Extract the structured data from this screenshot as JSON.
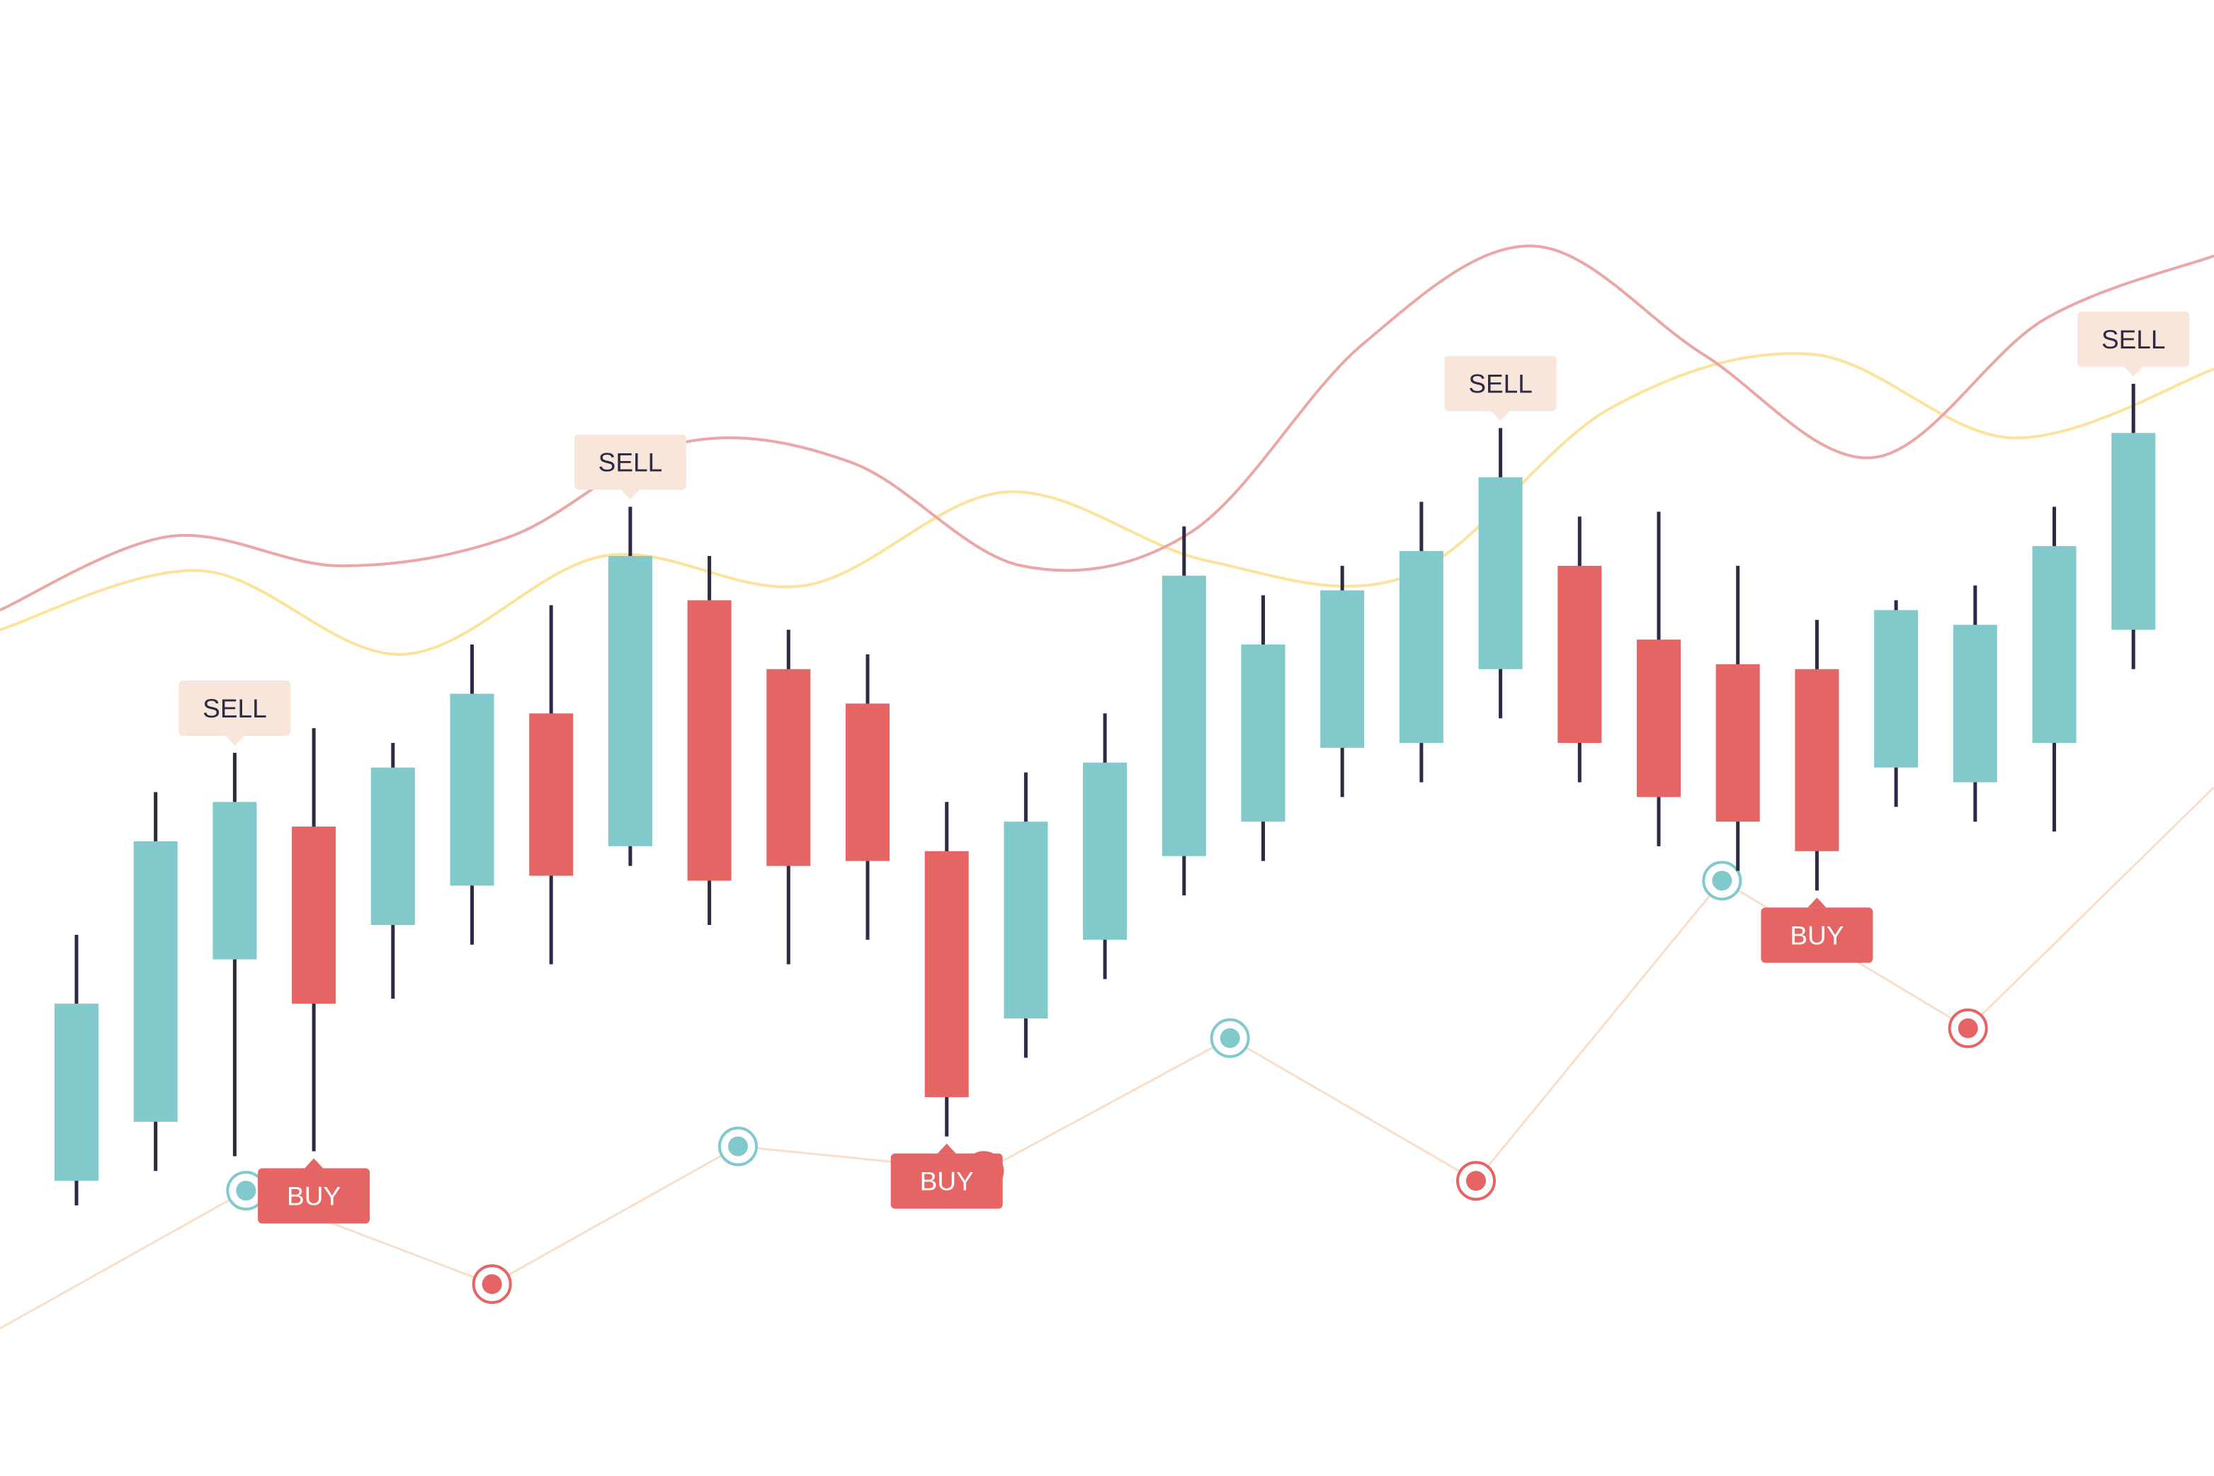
{
  "chart_data": {
    "type": "candlestick",
    "colors": {
      "up": "#82C9CB",
      "down": "#E46564",
      "wick": "#2E2A44",
      "ma_fast": "#EAA7A5",
      "ma_slow": "#FBE39C",
      "oscillator": "#F9DEC9",
      "sell_label_bg": "#F8E6DB",
      "sell_label_text": "#2E2A44",
      "buy_label_bg": "#E46564",
      "buy_label_text": "#FFFFFF"
    },
    "candles": [
      {
        "open": 300,
        "close": 480,
        "high": 550,
        "low": 275,
        "dir": "up"
      },
      {
        "open": 360,
        "close": 645,
        "high": 695,
        "low": 310,
        "dir": "up"
      },
      {
        "open": 525,
        "close": 685,
        "high": 735,
        "low": 325,
        "dir": "up"
      },
      {
        "open": 480,
        "close": 660,
        "high": 760,
        "low": 330,
        "dir": "down"
      },
      {
        "open": 560,
        "close": 720,
        "high": 745,
        "low": 485,
        "dir": "up"
      },
      {
        "open": 600,
        "close": 795,
        "high": 845,
        "low": 540,
        "dir": "up"
      },
      {
        "open": 610,
        "close": 775,
        "high": 885,
        "low": 520,
        "dir": "down"
      },
      {
        "open": 640,
        "close": 935,
        "high": 985,
        "low": 620,
        "dir": "up"
      },
      {
        "open": 605,
        "close": 890,
        "high": 935,
        "low": 560,
        "dir": "down"
      },
      {
        "open": 620,
        "close": 820,
        "high": 860,
        "low": 520,
        "dir": "down"
      },
      {
        "open": 625,
        "close": 785,
        "high": 835,
        "low": 545,
        "dir": "down"
      },
      {
        "open": 385,
        "close": 635,
        "high": 685,
        "low": 345,
        "dir": "down"
      },
      {
        "open": 465,
        "close": 665,
        "high": 715,
        "low": 425,
        "dir": "up"
      },
      {
        "open": 545,
        "close": 725,
        "high": 775,
        "low": 505,
        "dir": "up"
      },
      {
        "open": 630,
        "close": 915,
        "high": 965,
        "low": 590,
        "dir": "up"
      },
      {
        "open": 665,
        "close": 845,
        "high": 895,
        "low": 625,
        "dir": "up"
      },
      {
        "open": 740,
        "close": 900,
        "high": 925,
        "low": 690,
        "dir": "up"
      },
      {
        "open": 745,
        "close": 940,
        "high": 990,
        "low": 705,
        "dir": "up"
      },
      {
        "open": 820,
        "close": 1015,
        "high": 1065,
        "low": 770,
        "dir": "up"
      },
      {
        "open": 745,
        "close": 925,
        "high": 975,
        "low": 705,
        "dir": "down"
      },
      {
        "open": 690,
        "close": 850,
        "high": 980,
        "low": 640,
        "dir": "down"
      },
      {
        "open": 665,
        "close": 825,
        "high": 925,
        "low": 615,
        "dir": "down"
      },
      {
        "open": 635,
        "close": 820,
        "high": 870,
        "low": 595,
        "dir": "down"
      },
      {
        "open": 720,
        "close": 880,
        "high": 890,
        "low": 680,
        "dir": "up"
      },
      {
        "open": 705,
        "close": 865,
        "high": 905,
        "low": 665,
        "dir": "up"
      },
      {
        "open": 745,
        "close": 945,
        "high": 985,
        "low": 655,
        "dir": "up"
      },
      {
        "open": 860,
        "close": 1060,
        "high": 1110,
        "low": 820,
        "dir": "up"
      }
    ],
    "ma_fast": [
      880,
      955,
      925,
      955,
      1050,
      1030,
      925,
      960,
      1150,
      1250,
      1140,
      1035,
      1175,
      1240
    ],
    "ma_slow": [
      860,
      920,
      835,
      935,
      905,
      1000,
      930,
      915,
      1085,
      1140,
      1055,
      1125
    ],
    "oscillator": [
      150,
      290,
      195,
      335,
      310,
      445,
      300,
      605,
      455,
      700
    ],
    "oscillator_markers": [
      {
        "index": 1,
        "type": "up"
      },
      {
        "index": 2,
        "type": "down"
      },
      {
        "index": 3,
        "type": "up"
      },
      {
        "index": 4,
        "type": "down"
      },
      {
        "index": 5,
        "type": "up"
      },
      {
        "index": 6,
        "type": "down"
      },
      {
        "index": 7,
        "type": "up"
      },
      {
        "index": 8,
        "type": "down"
      }
    ],
    "signals": [
      {
        "candle": 2,
        "type": "sell",
        "label": "SELL"
      },
      {
        "candle": 3,
        "type": "buy",
        "label": "BUY"
      },
      {
        "candle": 7,
        "type": "sell",
        "label": "SELL"
      },
      {
        "candle": 11,
        "type": "buy",
        "label": "BUY"
      },
      {
        "candle": 18,
        "type": "sell",
        "label": "SELL"
      },
      {
        "candle": 22,
        "type": "buy",
        "label": "BUY"
      },
      {
        "candle": 26,
        "type": "sell",
        "label": "SELL"
      }
    ],
    "ylim": [
      0,
      1500
    ],
    "grid": false,
    "legend": "none"
  }
}
